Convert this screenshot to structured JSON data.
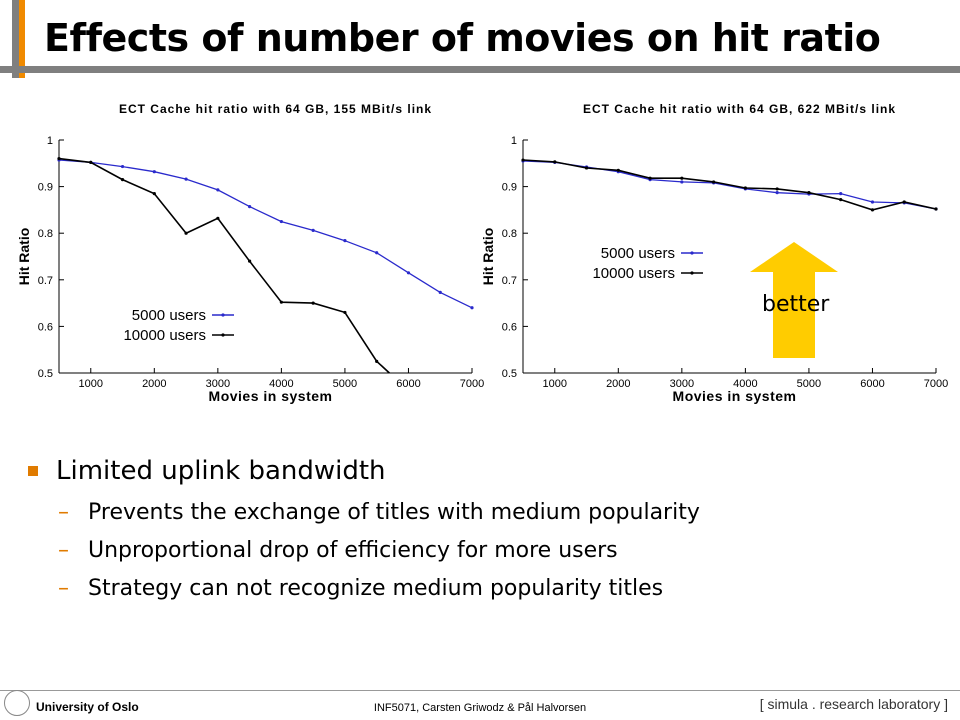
{
  "slide": {
    "title": "Effects of number of movies on hit ratio",
    "better_label": "better",
    "bullet": "Limited uplink bandwidth",
    "sub_items": [
      "Prevents the exchange of titles with medium popularity",
      "Unproportional drop of efficiency for more users",
      "Strategy can not recognize medium popularity titles"
    ],
    "sub_dash": "–"
  },
  "footer": {
    "university": "University of Oslo",
    "course": "INF5071, Carsten Griwodz & Pål Halvorsen",
    "lab": "[ simula . research laboratory ]"
  },
  "colors": {
    "accent": "#e07b00",
    "arrow": "#ffcc00",
    "series_5000": "#2a2acc",
    "series_10000": "#000000"
  },
  "chart_data": [
    {
      "type": "line",
      "title": "ECT Cache hit ratio with 64 GB, 155 MBit/s link",
      "xlabel": "Movies in system",
      "ylabel": "Hit Ratio",
      "xlim": [
        500,
        7000
      ],
      "ylim": [
        0.5,
        1.0
      ],
      "xticks": [
        1000,
        2000,
        3000,
        4000,
        5000,
        6000,
        7000
      ],
      "yticks": [
        0.5,
        0.6,
        0.7,
        0.8,
        0.9,
        1
      ],
      "legend_position": "lower-left",
      "series": [
        {
          "name": "5000 users",
          "x": [
            500,
            1000,
            1500,
            2000,
            2500,
            3000,
            3500,
            4000,
            4500,
            5000,
            5500,
            6000,
            6500,
            7000
          ],
          "y": [
            0.957,
            0.952,
            0.943,
            0.932,
            0.916,
            0.893,
            0.857,
            0.825,
            0.806,
            0.784,
            0.758,
            0.715,
            0.673,
            0.64
          ]
        },
        {
          "name": "10000 users",
          "x": [
            500,
            1000,
            1500,
            2000,
            2500,
            3000,
            3500,
            4000,
            4500,
            5000,
            5500,
            5700
          ],
          "y": [
            0.96,
            0.952,
            0.915,
            0.885,
            0.8,
            0.832,
            0.74,
            0.652,
            0.65,
            0.63,
            0.525,
            0.5
          ]
        }
      ]
    },
    {
      "type": "line",
      "title": "ECT Cache hit ratio with 64 GB, 622 MBit/s link",
      "xlabel": "Movies in system",
      "ylabel": "Hit Ratio",
      "xlim": [
        500,
        7000
      ],
      "ylim": [
        0.5,
        1.0
      ],
      "xticks": [
        1000,
        2000,
        3000,
        4000,
        5000,
        6000,
        7000
      ],
      "yticks": [
        0.5,
        0.6,
        0.7,
        0.8,
        0.9,
        1
      ],
      "legend_position": "middle-left",
      "series": [
        {
          "name": "5000 users",
          "x": [
            500,
            1000,
            1500,
            2000,
            2500,
            3000,
            3500,
            4000,
            4500,
            5000,
            5500,
            6000,
            6500,
            7000
          ],
          "y": [
            0.955,
            0.952,
            0.942,
            0.932,
            0.915,
            0.91,
            0.908,
            0.895,
            0.887,
            0.884,
            0.885,
            0.867,
            0.865,
            0.852
          ]
        },
        {
          "name": "10000 users",
          "x": [
            500,
            1000,
            1500,
            2000,
            2500,
            3000,
            3500,
            4000,
            4500,
            5000,
            5500,
            6000,
            6500,
            7000
          ],
          "y": [
            0.957,
            0.953,
            0.94,
            0.935,
            0.918,
            0.918,
            0.91,
            0.897,
            0.895,
            0.887,
            0.872,
            0.85,
            0.867,
            0.852
          ]
        }
      ]
    }
  ]
}
